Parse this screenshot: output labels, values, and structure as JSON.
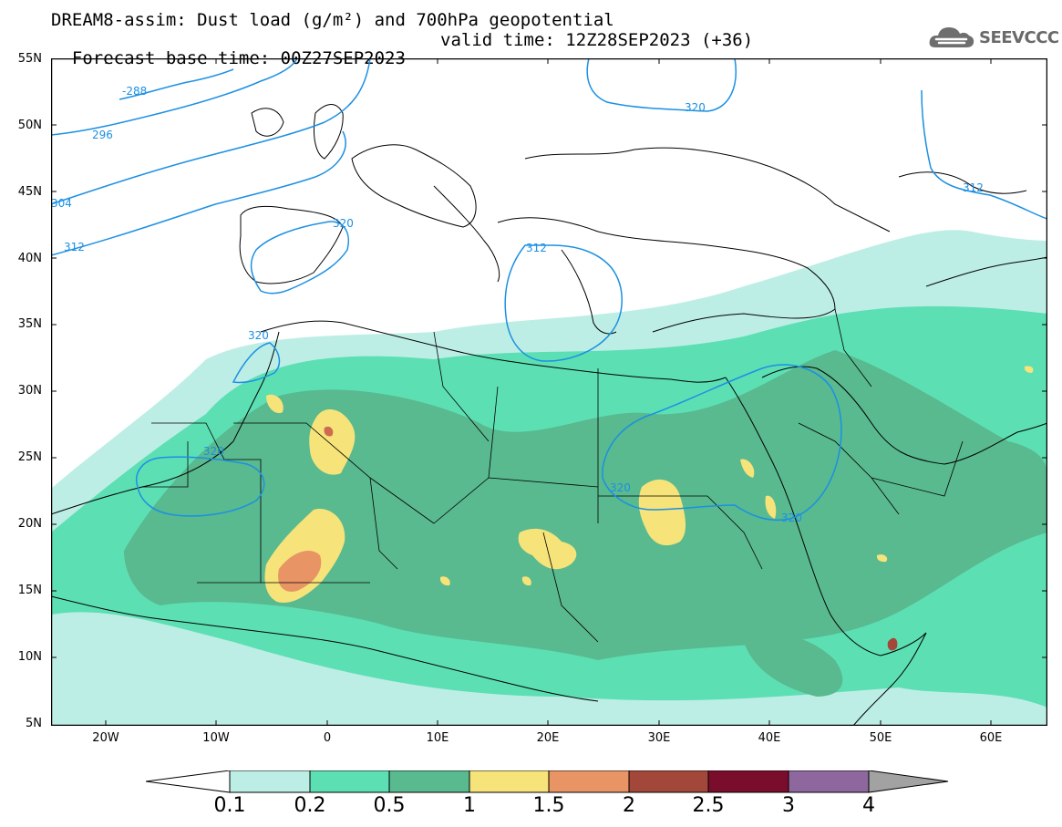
{
  "title": {
    "line1": "DREAM8-assim: Dust load (g/m²) and 700hPa geopotential",
    "base_time": "Forecast base time: 00Z27SEP2023",
    "valid_time": "valid time: 12Z28SEP2023 (+36)"
  },
  "logo": {
    "text": "SEEVCCC",
    "icon": "cloud-icon"
  },
  "map": {
    "lat_labels": [
      "55N",
      "50N",
      "45N",
      "40N",
      "35N",
      "30N",
      "25N",
      "20N",
      "15N",
      "10N",
      "5N"
    ],
    "lon_labels": [
      "20W",
      "10W",
      "0",
      "10E",
      "20E",
      "30E",
      "40E",
      "50E",
      "60E"
    ],
    "extent": {
      "lon": [
        -25,
        65
      ],
      "lat": [
        5,
        55
      ]
    },
    "contour_labels": [
      "-288",
      "296",
      "304",
      "312",
      "320",
      "320",
      "312",
      "320",
      "320",
      "320",
      "312"
    ]
  },
  "colorbar": {
    "labels": [
      "0.1",
      "0.2",
      "0.5",
      "1",
      "1.5",
      "2",
      "2.5",
      "3",
      "4"
    ],
    "colors": [
      "#ffffff",
      "#bdeee5",
      "#5ddfb4",
      "#59b98f",
      "#f6e37a",
      "#e89465",
      "#a2473a",
      "#7b0d2c",
      "#8d679d",
      "#a2a2a2"
    ]
  },
  "colors": {
    "contour": "#1c90e3",
    "land_bg": "#ffffff",
    "border": "#000000"
  }
}
